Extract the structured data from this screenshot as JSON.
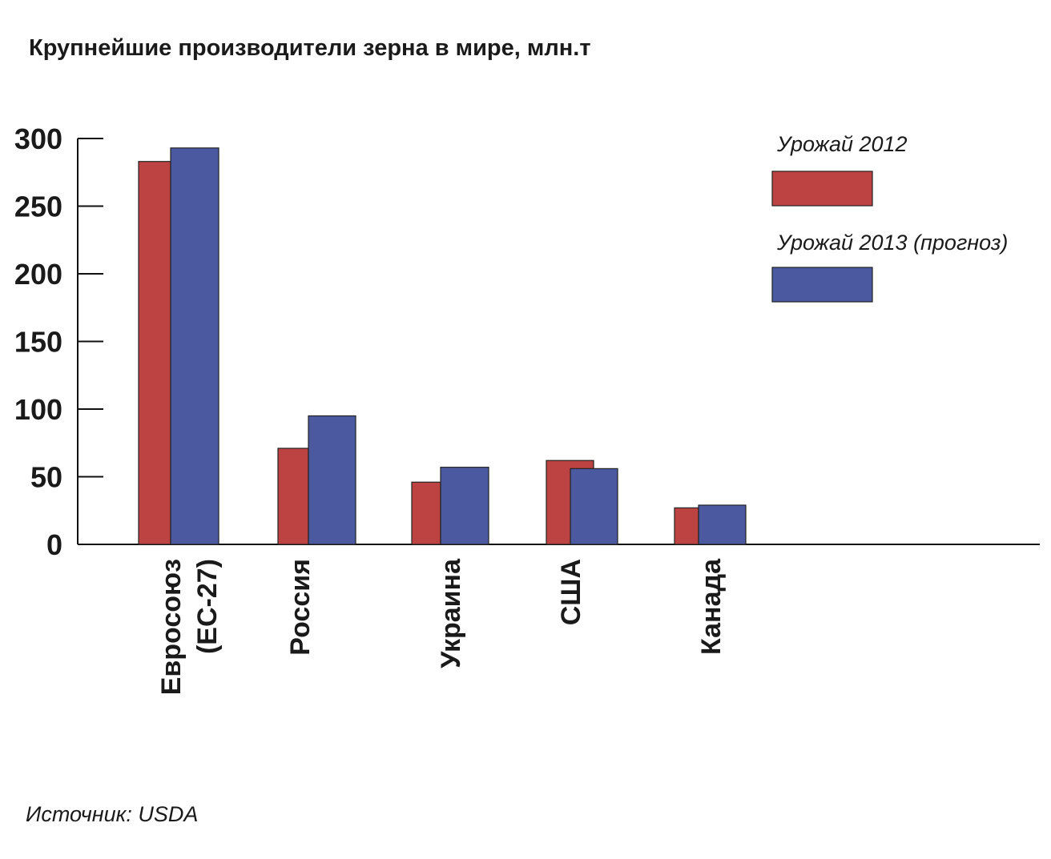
{
  "chart_data": {
    "type": "bar",
    "title": "Крупнейшие производители зерна в мире, млн.т",
    "categories": [
      [
        "Евросоюз",
        "(ЕС-27)"
      ],
      [
        "Россия"
      ],
      [
        "Украина"
      ],
      [
        "США"
      ],
      [
        "Канада"
      ]
    ],
    "series": [
      {
        "name": "Урожай 2012",
        "color": "#BC4341",
        "values": [
          283,
          71,
          46,
          62,
          27
        ]
      },
      {
        "name": "Урожай 2013 (прогноз)",
        "color": "#4B5AA0",
        "values": [
          293,
          95,
          57,
          56,
          29
        ]
      }
    ],
    "y_ticks": [
      0,
      50,
      100,
      150,
      200,
      250,
      300
    ],
    "ylim": [
      0,
      300
    ],
    "legend_position": "top-right",
    "grid": false,
    "source": "Источник: USDA"
  }
}
